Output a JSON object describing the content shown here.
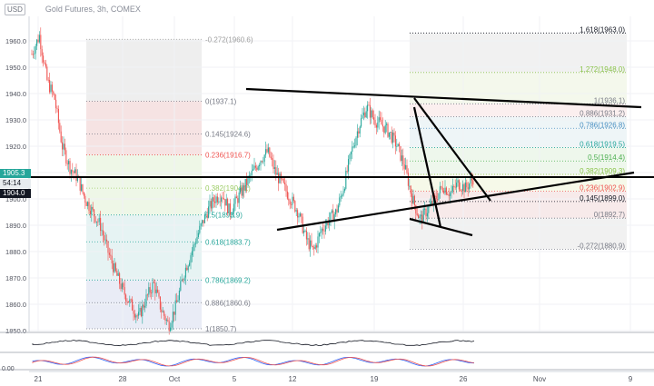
{
  "header": {
    "currency": "USD",
    "title": "Gold Futures, 3h, COMEX"
  },
  "price_badges": {
    "current": "1905.3",
    "countdown": "54:14",
    "prev_close": "1904.0"
  },
  "oscillator_label": "0.00",
  "colors": {
    "up": "#26a69a",
    "down": "#ef5350",
    "trendline": "#000000"
  },
  "chart_data": {
    "type": "candlestick",
    "y_ticks": [
      1850.0,
      1860.0,
      1870.0,
      1880.0,
      1890.0,
      1900.0,
      1910.0,
      1920.0,
      1930.0,
      1940.0,
      1950.0,
      1960.0
    ],
    "ylim": [
      1845,
      1968
    ],
    "x_ticks": [
      "21",
      "28",
      "Oct",
      "5",
      "12",
      "19",
      "26",
      "Nov",
      "9"
    ],
    "close_path": [
      [
        "21",
        1955
      ],
      [
        "21",
        1962
      ],
      [
        "21",
        1945
      ],
      [
        "21",
        1938
      ],
      [
        "21",
        1920
      ],
      [
        "21",
        1912
      ],
      [
        "21",
        1908
      ],
      [
        "21",
        1900
      ],
      [
        "21",
        1895
      ],
      [
        "21",
        1890
      ],
      [
        "21",
        1880
      ],
      [
        "21",
        1872
      ],
      [
        "28",
        1865
      ],
      [
        "28",
        1860
      ],
      [
        "28",
        1855
      ],
      [
        "28",
        1862
      ],
      [
        "28",
        1868
      ],
      [
        "28",
        1858
      ],
      [
        "28",
        1852
      ],
      [
        "28",
        1860
      ],
      [
        "28",
        1872
      ],
      [
        "28",
        1880
      ],
      [
        "28",
        1888
      ],
      [
        "28",
        1895
      ],
      [
        "Oct",
        1900
      ],
      [
        "Oct",
        1902
      ],
      [
        "Oct",
        1895
      ],
      [
        "Oct",
        1900
      ],
      [
        "Oct",
        1905
      ],
      [
        "Oct",
        1910
      ],
      [
        "Oct",
        1915
      ],
      [
        "Oct",
        1918
      ],
      [
        "Oct",
        1910
      ],
      [
        "Oct",
        1905
      ],
      [
        "Oct",
        1900
      ],
      [
        "5",
        1895
      ],
      [
        "5",
        1885
      ],
      [
        "5",
        1880
      ],
      [
        "5",
        1888
      ],
      [
        "5",
        1892
      ],
      [
        "5",
        1895
      ],
      [
        "5",
        1905
      ],
      [
        "5",
        1918
      ],
      [
        "5",
        1928
      ],
      [
        "5",
        1935
      ],
      [
        "12",
        1930
      ],
      [
        "12",
        1928
      ],
      [
        "12",
        1925
      ],
      [
        "12",
        1920
      ],
      [
        "12",
        1912
      ],
      [
        "12",
        1900
      ],
      [
        "12",
        1892
      ],
      [
        "12",
        1896
      ],
      [
        "12",
        1900
      ],
      [
        "12",
        1905
      ],
      [
        "12",
        1902
      ],
      [
        "12",
        1906
      ],
      [
        "19",
        1904
      ],
      [
        "19",
        1908
      ],
      [
        "19",
        1904
      ],
      [
        "19",
        1906
      ],
      [
        "19",
        1910
      ],
      [
        "19",
        1915
      ],
      [
        "19",
        1922
      ],
      [
        "19",
        1932
      ],
      [
        "19",
        1925
      ],
      [
        "19",
        1920
      ],
      [
        "19",
        1915
      ],
      [
        "19",
        1910
      ],
      [
        "26",
        1905
      ],
      [
        "26",
        1900
      ],
      [
        "26",
        1898
      ],
      [
        "26",
        1905
      ],
      [
        "26",
        1902
      ],
      [
        "26",
        1904
      ],
      [
        "26",
        1905
      ]
    ],
    "fib_left": {
      "levels": [
        {
          "ratio": "-0.272",
          "price": 1960.6
        },
        {
          "ratio": "0",
          "price": 1937.1
        },
        {
          "ratio": "0.145",
          "price": 1924.6
        },
        {
          "ratio": "0.236",
          "price": 1916.7
        },
        {
          "ratio": "0.382",
          "price": 1904.1
        },
        {
          "ratio": "0.5",
          "price": 1893.9
        },
        {
          "ratio": "0.618",
          "price": 1883.7
        },
        {
          "ratio": "0.786",
          "price": 1869.2
        },
        {
          "ratio": "0.886",
          "price": 1860.6
        },
        {
          "ratio": "1",
          "price": 1850.7
        }
      ]
    },
    "fib_right": {
      "levels": [
        {
          "ratio": "1.618",
          "price": 1963.0
        },
        {
          "ratio": "1.272",
          "price": 1948.0
        },
        {
          "ratio": "1",
          "price": 1936.1
        },
        {
          "ratio": "0.886",
          "price": 1931.2
        },
        {
          "ratio": "0.786",
          "price": 1926.8
        },
        {
          "ratio": "0.618",
          "price": 1919.5
        },
        {
          "ratio": "0.5",
          "price": 1914.4
        },
        {
          "ratio": "0.382",
          "price": 1909.3
        },
        {
          "ratio": "0.236",
          "price": 1902.9
        },
        {
          "ratio": "0.145",
          "price": 1899.0
        },
        {
          "ratio": "0",
          "price": 1892.7
        },
        {
          "ratio": "-0.272",
          "price": 1880.9
        }
      ]
    }
  }
}
